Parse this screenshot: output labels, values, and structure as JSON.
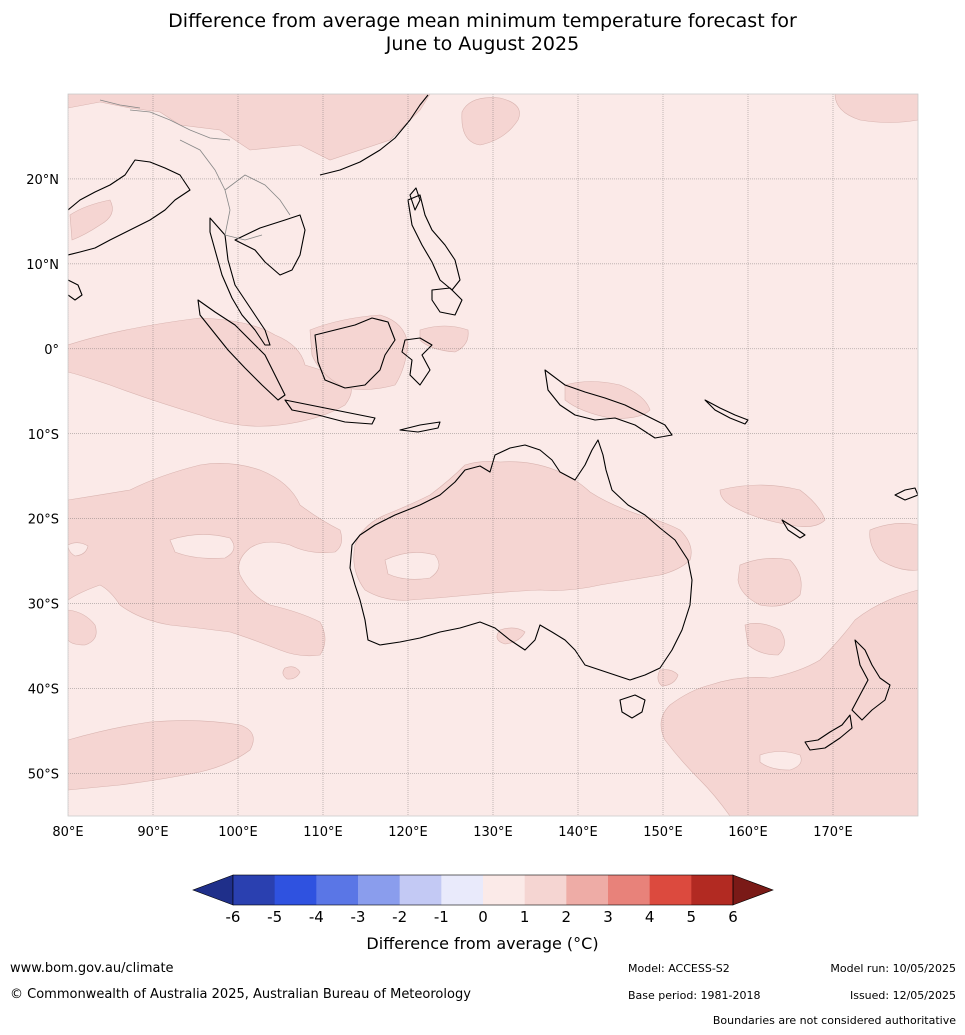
{
  "title": {
    "line1": "Difference from average mean minimum temperature forecast for",
    "line2": "June to August 2025"
  },
  "map": {
    "lon_range": [
      80,
      180
    ],
    "lat_range": [
      -55,
      30
    ],
    "lat_ticks": [
      {
        "value": 20,
        "label": "20°N"
      },
      {
        "value": 10,
        "label": "10°N"
      },
      {
        "value": 0,
        "label": "0°"
      },
      {
        "value": -10,
        "label": "10°S"
      },
      {
        "value": -20,
        "label": "20°S"
      },
      {
        "value": -30,
        "label": "30°S"
      },
      {
        "value": -40,
        "label": "40°S"
      },
      {
        "value": -50,
        "label": "50°S"
      }
    ],
    "lon_ticks": [
      {
        "value": 80,
        "label": "80°E"
      },
      {
        "value": 90,
        "label": "90°E"
      },
      {
        "value": 100,
        "label": "100°E"
      },
      {
        "value": 110,
        "label": "110°E"
      },
      {
        "value": 120,
        "label": "120°E"
      },
      {
        "value": 130,
        "label": "130°E"
      },
      {
        "value": 140,
        "label": "140°E"
      },
      {
        "value": 150,
        "label": "150°E"
      },
      {
        "value": 160,
        "label": "160°E"
      },
      {
        "value": 170,
        "label": "170°E"
      }
    ],
    "background_class": "0 to 1",
    "background_color": "#fbeae8",
    "warm_class": "1 to 2",
    "warm_color": "#f5d5d2"
  },
  "colorbar": {
    "labels": [
      "-6",
      "-5",
      "-4",
      "-3",
      "-2",
      "-1",
      "0",
      "1",
      "2",
      "3",
      "4",
      "5",
      "6"
    ],
    "colors": [
      "#1f2f8a",
      "#2a40b0",
      "#2f52e0",
      "#5a76e6",
      "#8a9ded",
      "#c3c9f4",
      "#e9eafb",
      "#fbeae8",
      "#f5d5d2",
      "#eeaca6",
      "#e8827a",
      "#dc4a3e",
      "#b22a22",
      "#7a1a17"
    ],
    "title": "Difference from average (°C)"
  },
  "footer": {
    "url": "www.bom.gov.au/climate",
    "copyright": "© Commonwealth of Australia 2025, Australian Bureau of Meteorology",
    "model": "Model: ACCESS-S2",
    "base_period": "Base period: 1981-2018",
    "model_run": "Model run: 10/05/2025",
    "issued": "Issued: 12/05/2025",
    "disclaimer": "Boundaries are not considered authoritative"
  }
}
